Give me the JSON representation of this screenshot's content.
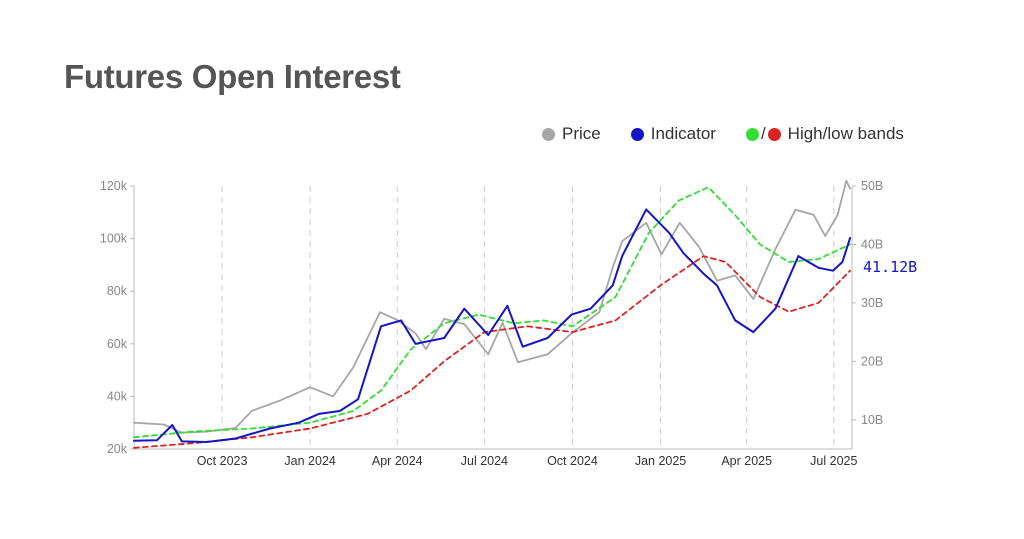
{
  "title": "Futures Open Interest",
  "legend": {
    "price": "Price",
    "indicator": "Indicator",
    "bands_sep": "/",
    "bands": "High/low bands"
  },
  "colors": {
    "price": "#a6a6a6",
    "indicator": "#1414c8",
    "high_band": "#33dd33",
    "low_band": "#dd2222",
    "grid": "#cccccc",
    "axis": "#bbbbbb"
  },
  "last_value_label": "41.12B",
  "chart_data": {
    "type": "line",
    "x_range": [
      "2023-07-01",
      "2025-07-20"
    ],
    "x_ticks": [
      {
        "date": "2023-10-01",
        "label": "Oct 2023"
      },
      {
        "date": "2024-01-01",
        "label": "Jan 2024"
      },
      {
        "date": "2024-04-01",
        "label": "Apr 2024"
      },
      {
        "date": "2024-07-01",
        "label": "Jul 2024"
      },
      {
        "date": "2024-10-01",
        "label": "Oct 2024"
      },
      {
        "date": "2025-01-01",
        "label": "Jan 2025"
      },
      {
        "date": "2025-04-01",
        "label": "Apr 2025"
      },
      {
        "date": "2025-07-01",
        "label": "Jul 2025"
      }
    ],
    "y_left": {
      "min": 20000,
      "max": 120000,
      "ticks": [
        {
          "v": 20000,
          "label": "20k"
        },
        {
          "v": 40000,
          "label": "40k"
        },
        {
          "v": 60000,
          "label": "60k"
        },
        {
          "v": 80000,
          "label": "80k"
        },
        {
          "v": 100000,
          "label": "100k"
        },
        {
          "v": 120000,
          "label": "120k"
        }
      ]
    },
    "y_right": {
      "min": 5,
      "max": 50,
      "unit": "B",
      "ticks": [
        {
          "v": 10,
          "label": "10B"
        },
        {
          "v": 20,
          "label": "20B"
        },
        {
          "v": 30,
          "label": "30B"
        },
        {
          "v": 40,
          "label": "40B"
        },
        {
          "v": 50,
          "label": "50B"
        }
      ]
    },
    "grid": "vertical dashed at x ticks",
    "legend_position": "top-right",
    "series": [
      {
        "name": "Price",
        "axis": "left",
        "style": "solid",
        "points": [
          [
            "2023-07-01",
            30000
          ],
          [
            "2023-08-01",
            29300
          ],
          [
            "2023-08-20",
            26200
          ],
          [
            "2023-09-15",
            26600
          ],
          [
            "2023-10-15",
            28000
          ],
          [
            "2023-11-01",
            34500
          ],
          [
            "2023-12-01",
            38500
          ],
          [
            "2024-01-01",
            43500
          ],
          [
            "2024-01-25",
            40000
          ],
          [
            "2024-02-15",
            51000
          ],
          [
            "2024-03-14",
            72000
          ],
          [
            "2024-04-01",
            69000
          ],
          [
            "2024-04-20",
            64000
          ],
          [
            "2024-05-01",
            58000
          ],
          [
            "2024-05-20",
            69500
          ],
          [
            "2024-06-10",
            67500
          ],
          [
            "2024-07-05",
            56000
          ],
          [
            "2024-07-20",
            68000
          ],
          [
            "2024-08-05",
            53000
          ],
          [
            "2024-09-05",
            56000
          ],
          [
            "2024-09-30",
            64000
          ],
          [
            "2024-10-29",
            72000
          ],
          [
            "2024-11-12",
            89000
          ],
          [
            "2024-11-22",
            99000
          ],
          [
            "2024-12-17",
            106000
          ],
          [
            "2025-01-02",
            94000
          ],
          [
            "2025-01-21",
            106000
          ],
          [
            "2025-02-10",
            97000
          ],
          [
            "2025-03-01",
            84000
          ],
          [
            "2025-03-20",
            86000
          ],
          [
            "2025-04-08",
            77000
          ],
          [
            "2025-05-01",
            96000
          ],
          [
            "2025-05-22",
            111000
          ],
          [
            "2025-06-10",
            109000
          ],
          [
            "2025-06-22",
            101000
          ],
          [
            "2025-07-05",
            109000
          ],
          [
            "2025-07-14",
            122000
          ],
          [
            "2025-07-18",
            119000
          ]
        ]
      },
      {
        "name": "Indicator",
        "axis": "right",
        "style": "solid",
        "points": [
          [
            "2023-07-01",
            6.4
          ],
          [
            "2023-07-25",
            6.5
          ],
          [
            "2023-08-10",
            9.1
          ],
          [
            "2023-08-20",
            6.3
          ],
          [
            "2023-09-15",
            6.2
          ],
          [
            "2023-10-15",
            6.8
          ],
          [
            "2023-11-20",
            8.5
          ],
          [
            "2023-12-20",
            9.5
          ],
          [
            "2024-01-10",
            11.0
          ],
          [
            "2024-02-01",
            11.5
          ],
          [
            "2024-02-20",
            13.5
          ],
          [
            "2024-03-15",
            26.0
          ],
          [
            "2024-04-05",
            27.0
          ],
          [
            "2024-04-20",
            23.0
          ],
          [
            "2024-05-20",
            24.0
          ],
          [
            "2024-06-10",
            29.0
          ],
          [
            "2024-07-05",
            24.5
          ],
          [
            "2024-07-25",
            29.5
          ],
          [
            "2024-08-10",
            22.5
          ],
          [
            "2024-09-05",
            24.0
          ],
          [
            "2024-09-30",
            28.0
          ],
          [
            "2024-10-20",
            29.0
          ],
          [
            "2024-11-12",
            33.0
          ],
          [
            "2024-11-22",
            38.0
          ],
          [
            "2024-12-17",
            46.0
          ],
          [
            "2025-01-10",
            42.0
          ],
          [
            "2025-01-25",
            38.5
          ],
          [
            "2025-02-15",
            35.0
          ],
          [
            "2025-03-01",
            33.0
          ],
          [
            "2025-03-20",
            27.0
          ],
          [
            "2025-04-08",
            25.0
          ],
          [
            "2025-05-01",
            29.0
          ],
          [
            "2025-05-25",
            38.0
          ],
          [
            "2025-06-15",
            36.0
          ],
          [
            "2025-06-30",
            35.5
          ],
          [
            "2025-07-10",
            37.0
          ],
          [
            "2025-07-18",
            41.12
          ]
        ]
      },
      {
        "name": "High band",
        "axis": "right",
        "style": "dashed",
        "points": [
          [
            "2023-07-01",
            7.0
          ],
          [
            "2023-09-01",
            8.0
          ],
          [
            "2023-11-01",
            8.5
          ],
          [
            "2024-01-01",
            9.5
          ],
          [
            "2024-02-15",
            11.5
          ],
          [
            "2024-03-15",
            15.0
          ],
          [
            "2024-04-15",
            22.0
          ],
          [
            "2024-05-20",
            26.5
          ],
          [
            "2024-06-25",
            28.0
          ],
          [
            "2024-08-01",
            26.5
          ],
          [
            "2024-09-01",
            27.0
          ],
          [
            "2024-10-01",
            26.0
          ],
          [
            "2024-11-15",
            31.0
          ],
          [
            "2024-12-20",
            42.0
          ],
          [
            "2025-01-20",
            47.5
          ],
          [
            "2025-02-20",
            49.8
          ],
          [
            "2025-03-20",
            45.0
          ],
          [
            "2025-04-15",
            40.0
          ],
          [
            "2025-05-15",
            37.0
          ],
          [
            "2025-06-15",
            37.5
          ],
          [
            "2025-07-18",
            40.0
          ]
        ]
      },
      {
        "name": "Low band",
        "axis": "right",
        "style": "dashed",
        "points": [
          [
            "2023-07-01",
            5.2
          ],
          [
            "2023-09-01",
            6.0
          ],
          [
            "2023-11-01",
            7.0
          ],
          [
            "2024-01-01",
            8.5
          ],
          [
            "2024-03-01",
            11.0
          ],
          [
            "2024-04-15",
            15.0
          ],
          [
            "2024-05-20",
            20.0
          ],
          [
            "2024-07-01",
            25.0
          ],
          [
            "2024-08-15",
            26.0
          ],
          [
            "2024-10-01",
            25.0
          ],
          [
            "2024-11-15",
            27.0
          ],
          [
            "2025-01-01",
            33.0
          ],
          [
            "2025-02-15",
            38.0
          ],
          [
            "2025-03-10",
            37.0
          ],
          [
            "2025-04-15",
            31.0
          ],
          [
            "2025-05-15",
            28.5
          ],
          [
            "2025-06-15",
            30.0
          ],
          [
            "2025-07-18",
            35.5
          ]
        ]
      }
    ]
  }
}
